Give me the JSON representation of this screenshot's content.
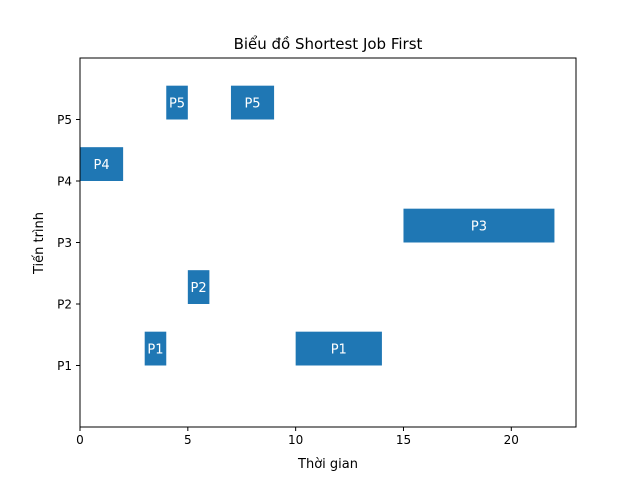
{
  "chart_data": {
    "type": "bar",
    "orientation": "horizontal-gantt",
    "title": "Biểu đồ Shortest Job First",
    "xlabel": "Thời gian",
    "ylabel": "Tiến trình",
    "xlim": [
      0,
      23
    ],
    "ylim": [
      0,
      6
    ],
    "x_ticks": [
      0,
      5,
      10,
      15,
      20
    ],
    "categories": [
      "P1",
      "P2",
      "P3",
      "P4",
      "P5"
    ],
    "grid": false,
    "bar_color": "#1f77b4",
    "bars": [
      {
        "process": "P1",
        "start": 3,
        "end": 4,
        "label": "P1"
      },
      {
        "process": "P1",
        "start": 10,
        "end": 14,
        "label": "P1"
      },
      {
        "process": "P2",
        "start": 5,
        "end": 6,
        "label": "P2"
      },
      {
        "process": "P3",
        "start": 15,
        "end": 22,
        "label": "P3"
      },
      {
        "process": "P4",
        "start": 0,
        "end": 2,
        "label": "P4"
      },
      {
        "process": "P5",
        "start": 4,
        "end": 5,
        "label": "P5"
      },
      {
        "process": "P5",
        "start": 7,
        "end": 9,
        "label": "P5"
      }
    ]
  }
}
